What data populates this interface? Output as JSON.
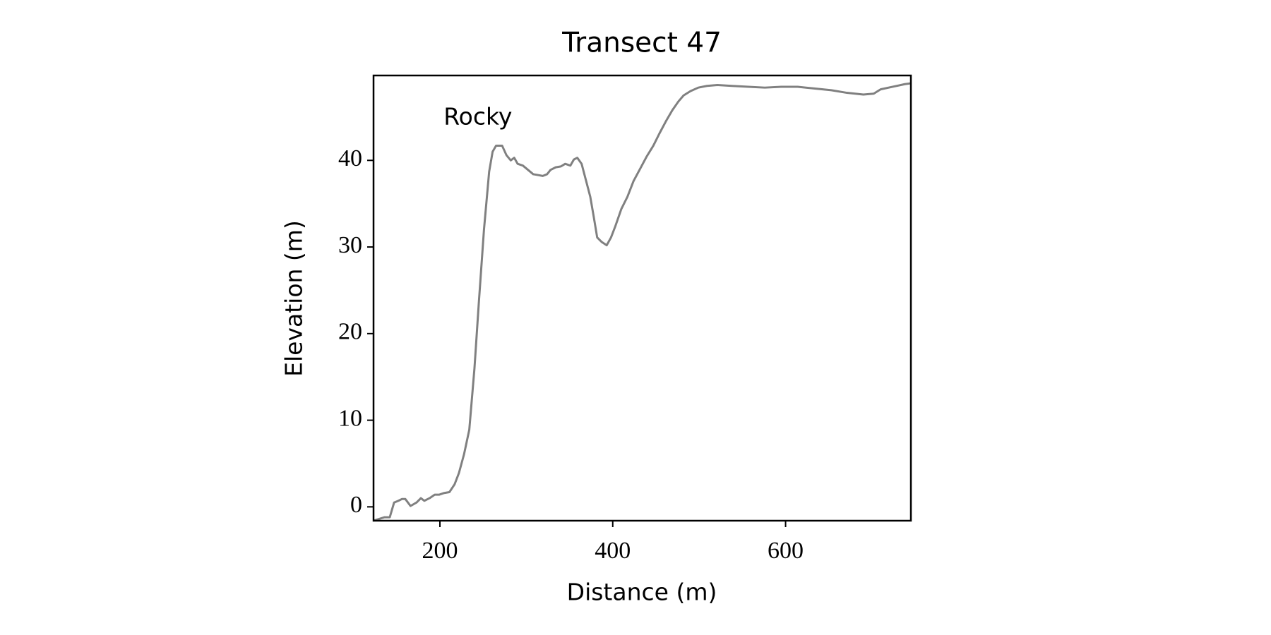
{
  "chart_data": {
    "type": "line",
    "title": "Transect 47",
    "x_label": "Distance (m)",
    "y_label": "Elevation (m)",
    "x": [
      123,
      136,
      142,
      147,
      152,
      156,
      160,
      166,
      173,
      178,
      182,
      188,
      194,
      199,
      205,
      211,
      217,
      222,
      228,
      234,
      240,
      245,
      251,
      257,
      261,
      265,
      272,
      277,
      282,
      286,
      290,
      296,
      302,
      308,
      314,
      319,
      324,
      328,
      334,
      340,
      345,
      351,
      355,
      359,
      364,
      369,
      374,
      378,
      382,
      387,
      393,
      398,
      403,
      410,
      417,
      424,
      431,
      439,
      447,
      454,
      462,
      469,
      476,
      482,
      490,
      499,
      509,
      521,
      538,
      557,
      576,
      595,
      614,
      633,
      653,
      671,
      690,
      702,
      710,
      724,
      738,
      745
    ],
    "series": [
      {
        "name": "Transect 47",
        "color": "#808080",
        "values": [
          -1.6,
          -1.2,
          -1.2,
          0.5,
          0.7,
          0.9,
          0.9,
          0.1,
          0.5,
          1.0,
          0.7,
          1.0,
          1.4,
          1.4,
          1.6,
          1.7,
          2.6,
          3.9,
          6.1,
          8.9,
          16,
          23.5,
          32,
          38.7,
          41,
          41.7,
          41.7,
          40.6,
          40,
          40.3,
          39.6,
          39.4,
          38.9,
          38.4,
          38.3,
          38.2,
          38.4,
          38.9,
          39.2,
          39.3,
          39.6,
          39.4,
          40.1,
          40.3,
          39.6,
          37.7,
          35.8,
          33.5,
          31.1,
          30.6,
          30.2,
          31.1,
          32.4,
          34.4,
          35.8,
          37.6,
          38.9,
          40.4,
          41.7,
          43.1,
          44.6,
          45.8,
          46.8,
          47.5,
          48,
          48.4,
          48.6,
          48.7,
          48.6,
          48.5,
          48.4,
          48.5,
          48.5,
          48.3,
          48.1,
          47.8,
          47.6,
          47.7,
          48.2,
          48.5,
          48.8,
          48.9
        ]
      }
    ],
    "annotations": [
      {
        "text": "Rocky",
        "x": 244,
        "y": 44.9
      }
    ],
    "xlim": [
      123.2,
      745
    ],
    "ylim": [
      -1.6,
      49.8
    ],
    "xticks": [
      200,
      400,
      600
    ],
    "yticks": [
      0,
      10,
      20,
      30,
      40
    ],
    "grid": false
  }
}
